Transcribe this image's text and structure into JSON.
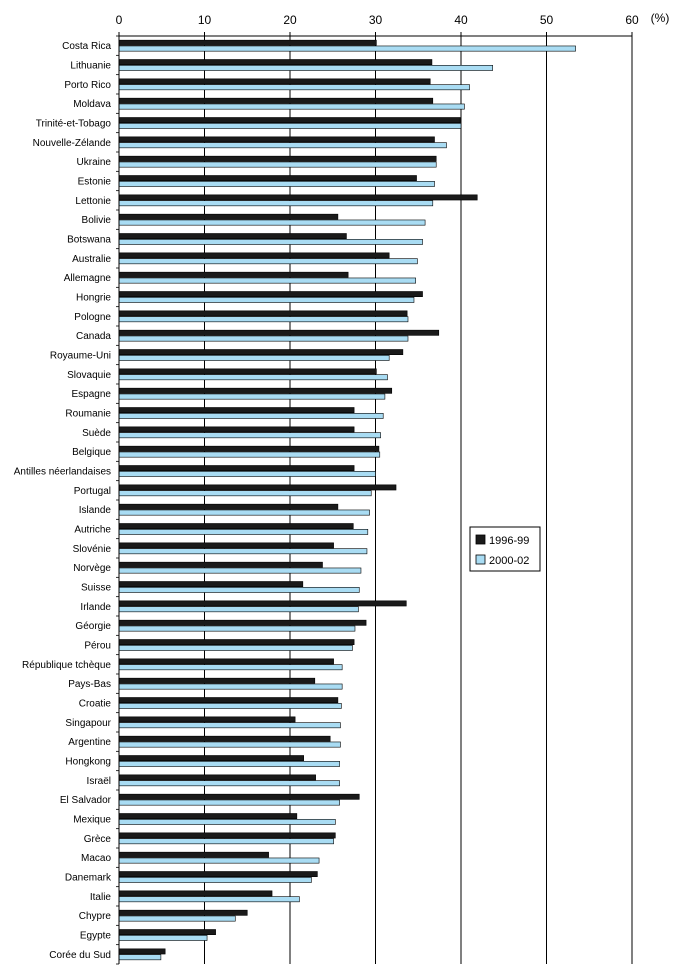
{
  "chart_data": {
    "type": "bar",
    "orientation": "horizontal",
    "unit": "(%)",
    "xlim": [
      0,
      60
    ],
    "ticks": [
      0,
      10,
      20,
      30,
      40,
      50,
      60
    ],
    "grid": true,
    "legend_position": "right",
    "categories": [
      "Costa Rica",
      "Lithuanie",
      "Porto Rico",
      "Moldava",
      "Trinité-et-Tobago",
      "Nouvelle-Zélande",
      "Ukraine",
      "Estonie",
      "Lettonie",
      "Bolivie",
      "Botswana",
      "Australie",
      "Allemagne",
      "Hongrie",
      "Pologne",
      "Canada",
      "Royaume-Uni",
      "Slovaquie",
      "Espagne",
      "Roumanie",
      "Suède",
      "Belgique",
      "Antilles néerlandaises",
      "Portugal",
      "Islande",
      "Autriche",
      "Slovénie",
      "Norvège",
      "Suisse",
      "Irlande",
      "Géorgie",
      "Pérou",
      "République tchèque",
      "Pays-Bas",
      "Croatie",
      "Singapour",
      "Argentine",
      "Hongkong",
      "Israël",
      "El Salvador",
      "Mexique",
      "Grèce",
      "Macao",
      "Danemark",
      "Italie",
      "Chypre",
      "Egypte",
      "Corée du Sud"
    ],
    "series": [
      {
        "name": "1996-99",
        "color": "#1a1a1a",
        "values": [
          30.1,
          36.6,
          36.4,
          36.7,
          39.9,
          36.9,
          37.1,
          34.8,
          41.9,
          25.6,
          26.6,
          31.6,
          26.8,
          35.5,
          33.7,
          37.4,
          33.2,
          30.1,
          31.9,
          27.5,
          27.5,
          30.4,
          27.5,
          32.4,
          25.6,
          27.4,
          25.1,
          23.8,
          21.5,
          33.6,
          28.9,
          27.5,
          25.1,
          22.9,
          25.6,
          20.6,
          24.7,
          21.6,
          23.0,
          28.1,
          20.8,
          25.3,
          17.5,
          23.2,
          17.9,
          15.0,
          11.3,
          5.4
        ]
      },
      {
        "name": "2000-02",
        "color": "#a9dcf3",
        "values": [
          53.4,
          43.7,
          41.0,
          40.4,
          40.0,
          38.3,
          37.1,
          36.9,
          36.7,
          35.8,
          35.5,
          34.9,
          34.7,
          34.5,
          33.8,
          33.8,
          31.6,
          31.4,
          31.1,
          30.9,
          30.6,
          30.5,
          30.0,
          29.5,
          29.3,
          29.1,
          29.0,
          28.3,
          28.1,
          28.0,
          27.6,
          27.3,
          26.1,
          26.1,
          26.0,
          25.9,
          25.9,
          25.8,
          25.8,
          25.8,
          25.3,
          25.1,
          23.4,
          22.5,
          21.1,
          13.6,
          10.3,
          4.9
        ]
      }
    ]
  }
}
